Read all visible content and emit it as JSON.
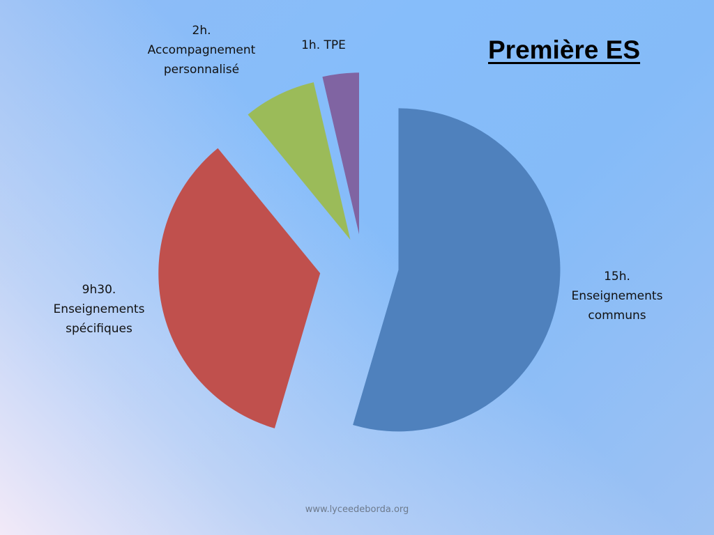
{
  "slide": {
    "title": "Première ES",
    "footer": "www.lyceedeborda.org"
  },
  "chart_data": {
    "type": "pie",
    "title": "Première ES",
    "exploded": true,
    "slices": [
      {
        "label_lines": [
          "15h.",
          "Enseignements",
          "communs"
        ],
        "value": 15,
        "color": "#4f81bd"
      },
      {
        "label_lines": [
          "9h30.",
          "Enseignements",
          "spécifiques"
        ],
        "value": 9.5,
        "color": "#c0504d"
      },
      {
        "label_lines": [
          "2h.",
          "Accompagnement",
          "personnalisé"
        ],
        "value": 2,
        "color": "#9bbb59"
      },
      {
        "label_lines": [
          "1h. TPE"
        ],
        "value": 1,
        "color": "#8064a2"
      }
    ],
    "legend": "none"
  }
}
